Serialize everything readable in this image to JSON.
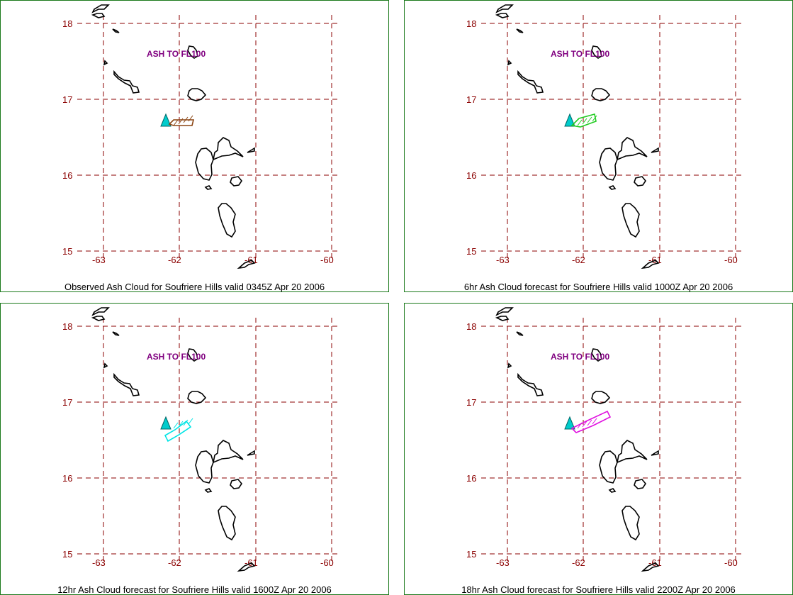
{
  "panels": [
    {
      "caption": "Observed Ash Cloud for Soufriere  Hills valid 0345Z Apr 20 2006",
      "annotation": "ASH TO FL100",
      "cloud_color": "#8b4513",
      "cloud_label": "observed"
    },
    {
      "caption": "6hr Ash Cloud forecast for Soufriere  Hills valid 1000Z Apr 20 2006",
      "annotation": "ASH TO FL100",
      "cloud_color": "#22cc22",
      "cloud_label": "6hr"
    },
    {
      "caption": "12hr Ash Cloud forecast for Soufriere  Hills valid 1600Z Apr 20 2006",
      "annotation": "ASH TO FL100",
      "cloud_color": "#00e5e5",
      "cloud_label": "12hr"
    },
    {
      "caption": "18hr Ash Cloud forecast for Soufriere  Hills valid 2200Z Apr 20 2006",
      "annotation": "ASH TO FL100",
      "cloud_color": "#e010e0",
      "cloud_label": "18hr"
    }
  ],
  "map": {
    "lat_labels": [
      "18",
      "17",
      "16",
      "15"
    ],
    "lon_labels": [
      "-63",
      "-62",
      "-61",
      "-60"
    ],
    "volcano_color": "#00cccc",
    "grid_color": "#8b0000",
    "frame_color": "#1b7a1b"
  }
}
